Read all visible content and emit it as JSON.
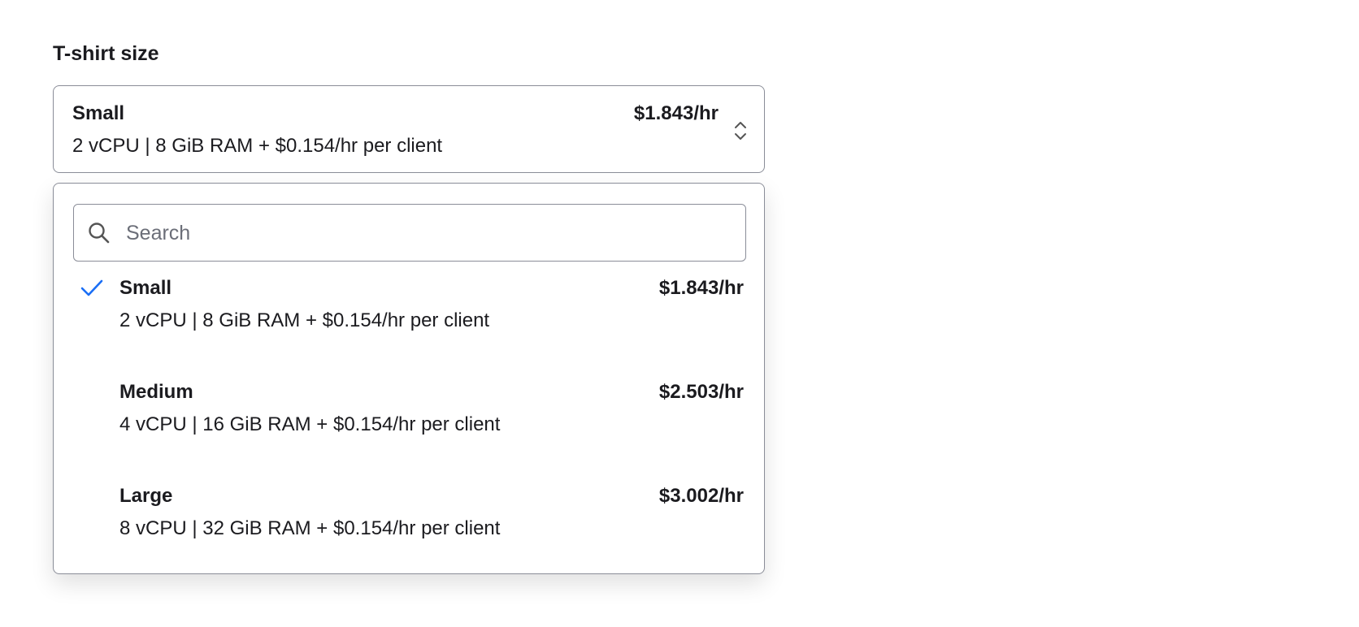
{
  "field": {
    "label": "T-shirt size"
  },
  "selected": {
    "name": "Small",
    "description": "2 vCPU | 8 GiB RAM + $0.154/hr per client",
    "price": "$1.843/hr"
  },
  "search": {
    "placeholder": "Search",
    "value": "",
    "icon": "search-icon"
  },
  "accent": "#1a6ef5",
  "options": [
    {
      "name": "Small",
      "description": "2 vCPU | 8 GiB RAM + $0.154/hr per client",
      "price": "$1.843/hr",
      "selected": true
    },
    {
      "name": "Medium",
      "description": "4 vCPU | 16 GiB RAM + $0.154/hr per client",
      "price": "$2.503/hr",
      "selected": false
    },
    {
      "name": "Large",
      "description": "8 vCPU | 32 GiB RAM + $0.154/hr per client",
      "price": "$3.002/hr",
      "selected": false
    }
  ]
}
